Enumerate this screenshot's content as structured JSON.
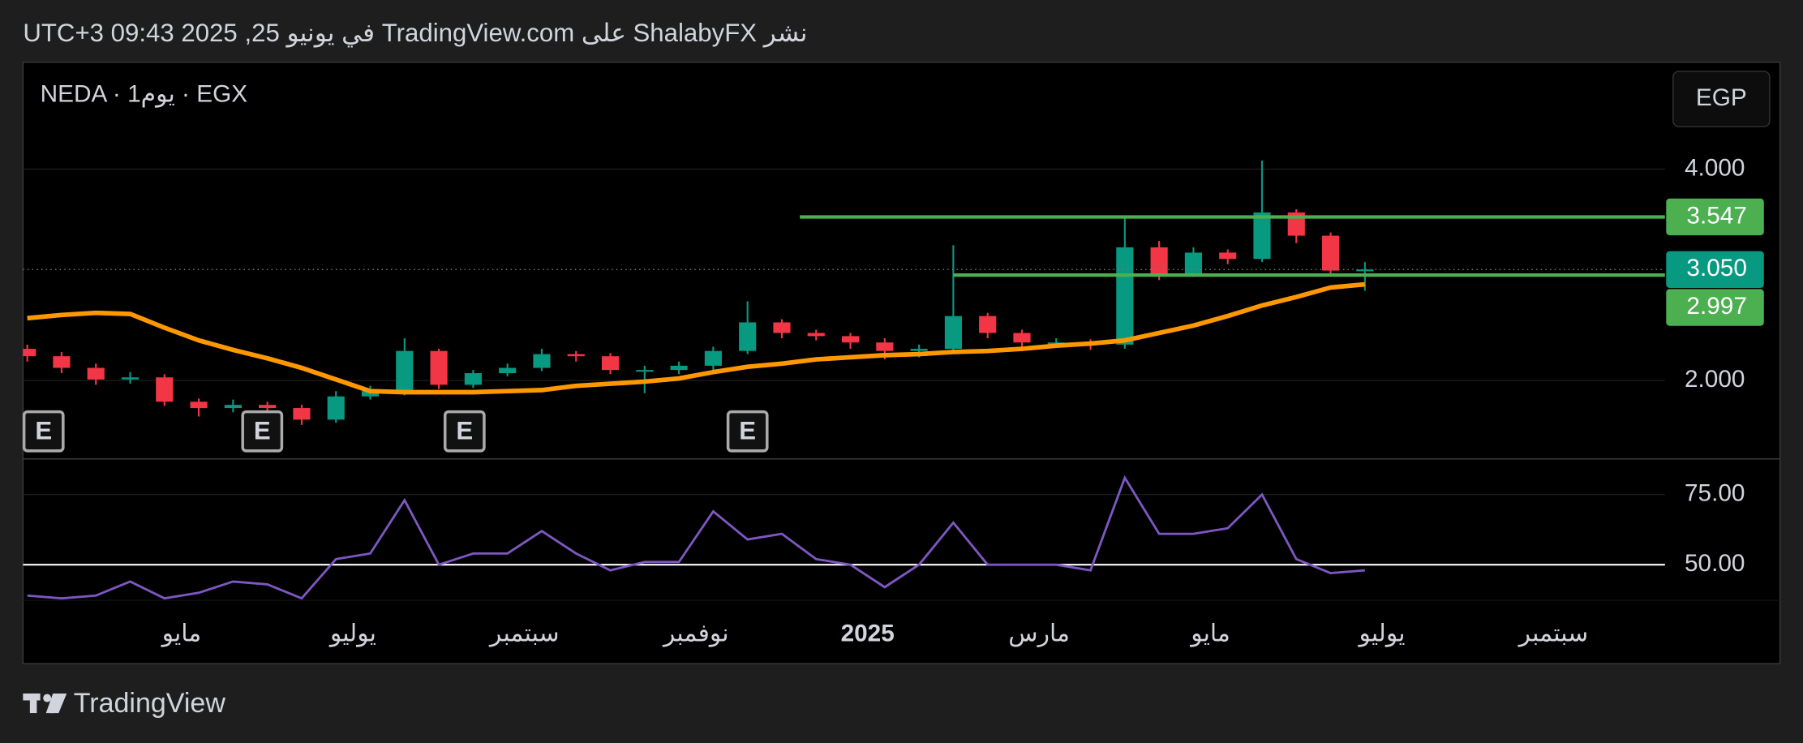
{
  "header": {
    "title": "نشر ShalabyFX على TradingView.com في يونيو 25, 2025 09:43 UTC+3"
  },
  "symbol": "NEDA · 1يوم · EGX",
  "currency": "EGP",
  "brand": "TradingView",
  "chart_data": [
    {
      "type": "candlestick",
      "xlim": [
        2.15,
        21.3
      ],
      "ylim": [
        1.27,
        5.0
      ],
      "yticks": [
        {
          "value": 2,
          "label": "2.000"
        },
        {
          "value": 4,
          "label": "4.000"
        }
      ],
      "grid": true,
      "up_color": "#089981",
      "down_color": "#f23645",
      "x": [
        2.2,
        2.6,
        3.0,
        3.4,
        3.8,
        4.2,
        4.6,
        5.0,
        5.4,
        5.8,
        6.2,
        6.6,
        7.0,
        7.4,
        7.8,
        8.2,
        8.6,
        9.0,
        9.4,
        9.8,
        10.2,
        10.6,
        11.0,
        11.4,
        11.8,
        12.2,
        12.6,
        13.0,
        13.4,
        13.8,
        14.2,
        14.6,
        15.0,
        15.4,
        15.8,
        16.2,
        16.6,
        17.0,
        17.4,
        17.8
      ],
      "open": [
        2.3,
        2.23,
        2.12,
        2.01,
        2.03,
        1.8,
        1.74,
        1.77,
        1.74,
        1.63,
        1.85,
        1.9,
        2.28,
        1.96,
        2.07,
        2.12,
        2.25,
        2.23,
        2.1,
        2.1,
        2.14,
        2.28,
        2.55,
        2.45,
        2.42,
        2.36,
        2.28,
        2.3,
        2.61,
        2.45,
        2.36,
        2.36,
        2.34,
        3.26,
        3.01,
        3.21,
        3.15,
        3.59,
        3.37,
        3.04
      ],
      "high": [
        2.34,
        2.27,
        2.16,
        2.08,
        2.06,
        1.83,
        1.82,
        1.8,
        1.77,
        1.9,
        1.95,
        2.4,
        2.3,
        2.1,
        2.16,
        2.3,
        2.28,
        2.26,
        2.14,
        2.18,
        2.32,
        2.75,
        2.58,
        2.48,
        2.45,
        2.4,
        2.34,
        3.28,
        2.64,
        2.48,
        2.4,
        2.39,
        3.55,
        3.32,
        3.26,
        3.24,
        4.08,
        3.62,
        3.4,
        3.12
      ],
      "low": [
        2.18,
        2.07,
        1.96,
        1.97,
        1.76,
        1.66,
        1.7,
        1.69,
        1.58,
        1.6,
        1.82,
        1.86,
        1.92,
        1.93,
        2.04,
        2.09,
        2.18,
        2.06,
        1.88,
        2.06,
        2.1,
        2.25,
        2.4,
        2.38,
        2.3,
        2.2,
        2.22,
        2.26,
        2.4,
        2.32,
        2.31,
        2.29,
        2.3,
        2.95,
        2.98,
        3.1,
        3.12,
        3.3,
        2.99,
        2.85
      ],
      "close": [
        2.23,
        2.12,
        2.01,
        2.03,
        1.8,
        1.74,
        1.77,
        1.74,
        1.63,
        1.85,
        1.9,
        2.28,
        1.96,
        2.07,
        2.12,
        2.25,
        2.23,
        2.1,
        2.1,
        2.14,
        2.28,
        2.55,
        2.45,
        2.42,
        2.36,
        2.28,
        2.3,
        2.61,
        2.45,
        2.36,
        2.36,
        2.34,
        3.26,
        3.01,
        3.21,
        3.15,
        3.59,
        3.37,
        3.04,
        3.05
      ],
      "ma": {
        "color": "#ff9800",
        "values": [
          2.59,
          2.62,
          2.64,
          2.63,
          2.5,
          2.38,
          2.29,
          2.21,
          2.12,
          2.01,
          1.9,
          1.89,
          1.89,
          1.89,
          1.9,
          1.91,
          1.95,
          1.97,
          1.99,
          2.02,
          2.08,
          2.13,
          2.16,
          2.2,
          2.22,
          2.24,
          2.25,
          2.27,
          2.28,
          2.3,
          2.33,
          2.35,
          2.38,
          2.45,
          2.52,
          2.61,
          2.71,
          2.79,
          2.88,
          2.91
        ]
      },
      "levels": [
        {
          "value": 3.547,
          "start": 11.21,
          "color": "#4caf50"
        },
        {
          "value": 2.997,
          "start": 13.0,
          "color": "#4caf50"
        }
      ],
      "last_price": {
        "value": 3.05,
        "label": "3.050",
        "color": "#089981"
      },
      "events": [
        {
          "x": 2.39,
          "label": "E"
        },
        {
          "x": 4.94,
          "label": "E"
        },
        {
          "x": 7.3,
          "label": "E"
        },
        {
          "x": 10.6,
          "label": "E"
        }
      ]
    },
    {
      "type": "line",
      "xlim": [
        2.15,
        21.3
      ],
      "ylim": [
        37.3,
        87.3
      ],
      "yticks": [
        {
          "value": 50,
          "label": "50.00"
        },
        {
          "value": 75,
          "label": "75.00"
        }
      ],
      "grid": true,
      "hline": 50,
      "xticks": [
        {
          "value": 4,
          "label": "مايو"
        },
        {
          "value": 6,
          "label": "يوليو"
        },
        {
          "value": 8,
          "label": "سبتمبر"
        },
        {
          "value": 10,
          "label": "نوفمبر"
        },
        {
          "value": 12,
          "label": "2025",
          "bold": true
        },
        {
          "value": 14,
          "label": "مارس"
        },
        {
          "value": 16,
          "label": "مايو"
        },
        {
          "value": 18,
          "label": "يوليو"
        },
        {
          "value": 20,
          "label": "سبتمبر"
        }
      ],
      "x": [
        2.2,
        2.6,
        3.0,
        3.4,
        3.8,
        4.2,
        4.6,
        5.0,
        5.4,
        5.8,
        6.2,
        6.6,
        7.0,
        7.4,
        7.8,
        8.2,
        8.6,
        9.0,
        9.4,
        9.8,
        10.2,
        10.6,
        11.0,
        11.4,
        11.8,
        12.2,
        12.6,
        13.0,
        13.4,
        13.8,
        14.2,
        14.6,
        15.0,
        15.4,
        15.8,
        16.2,
        16.6,
        17.0,
        17.4,
        17.8
      ],
      "series": [
        {
          "color": "#7e57c2",
          "values": [
            39,
            38,
            39,
            44,
            38,
            40,
            44,
            43,
            38,
            52,
            54,
            73,
            50,
            54,
            54,
            62,
            54,
            48,
            51,
            51,
            69,
            59,
            61,
            52,
            50,
            42,
            50,
            65,
            50,
            50,
            50,
            48,
            81,
            61,
            61,
            63,
            75,
            52,
            47,
            48
          ]
        }
      ]
    }
  ]
}
